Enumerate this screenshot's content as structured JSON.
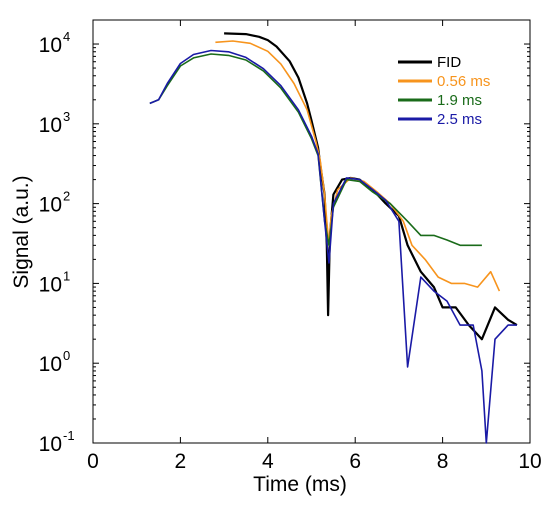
{
  "chart_data": {
    "type": "line",
    "title": "",
    "xlabel": "Time (ms)",
    "ylabel": "Signal (a.u.)",
    "xlim": [
      0,
      10
    ],
    "ylim": [
      0.1,
      20000
    ],
    "yscale": "log",
    "grid": false,
    "legend_position": "top-right",
    "x_ticks": [
      0,
      2,
      4,
      6,
      8,
      10
    ],
    "x_tick_labels": [
      "0",
      "2",
      "4",
      "6",
      "8",
      "10"
    ],
    "y_ticks": [
      0.1,
      1,
      10,
      100,
      1000,
      10000
    ],
    "y_tick_labels": [
      {
        "base": "10",
        "exp": "-1"
      },
      {
        "base": "10",
        "exp": "0"
      },
      {
        "base": "10",
        "exp": "1"
      },
      {
        "base": "10",
        "exp": "2"
      },
      {
        "base": "10",
        "exp": "3"
      },
      {
        "base": "10",
        "exp": "4"
      }
    ],
    "series": [
      {
        "name": "FID",
        "color": "#000000",
        "label_color": "#000000",
        "points": [
          [
            3.0,
            13600
          ],
          [
            3.5,
            13300
          ],
          [
            3.8,
            12300
          ],
          [
            4.0,
            11200
          ],
          [
            4.2,
            9300
          ],
          [
            4.5,
            6100
          ],
          [
            4.7,
            3800
          ],
          [
            4.9,
            1800
          ],
          [
            5.0,
            1100
          ],
          [
            5.1,
            650
          ],
          [
            5.15,
            500
          ],
          [
            5.2,
            310
          ],
          [
            5.3,
            130
          ],
          [
            5.35,
            30
          ],
          [
            5.38,
            4
          ],
          [
            5.42,
            40
          ],
          [
            5.5,
            130
          ],
          [
            5.7,
            200
          ],
          [
            5.9,
            210
          ],
          [
            6.1,
            200
          ],
          [
            6.4,
            150
          ],
          [
            6.7,
            100
          ],
          [
            7.0,
            70
          ],
          [
            7.2,
            30
          ],
          [
            7.5,
            14
          ],
          [
            7.8,
            9
          ],
          [
            8.0,
            5
          ],
          [
            8.3,
            5
          ],
          [
            8.6,
            3
          ],
          [
            8.9,
            2
          ],
          [
            9.2,
            5
          ],
          [
            9.5,
            3.5
          ],
          [
            9.7,
            3
          ]
        ]
      },
      {
        "name": "0.56 ms",
        "color": "#f7941d",
        "label_color": "#f7941d",
        "points": [
          [
            2.8,
            10500
          ],
          [
            3.2,
            10900
          ],
          [
            3.6,
            10200
          ],
          [
            4.0,
            8100
          ],
          [
            4.3,
            5600
          ],
          [
            4.6,
            3200
          ],
          [
            4.9,
            1500
          ],
          [
            5.1,
            600
          ],
          [
            5.2,
            350
          ],
          [
            5.3,
            130
          ],
          [
            5.35,
            60
          ],
          [
            5.4,
            30
          ],
          [
            5.45,
            70
          ],
          [
            5.6,
            150
          ],
          [
            5.9,
            210
          ],
          [
            6.2,
            190
          ],
          [
            6.5,
            140
          ],
          [
            6.8,
            100
          ],
          [
            7.1,
            60
          ],
          [
            7.3,
            30
          ],
          [
            7.6,
            20
          ],
          [
            7.9,
            12
          ],
          [
            8.2,
            10
          ],
          [
            8.5,
            10
          ],
          [
            8.8,
            9
          ],
          [
            9.1,
            14
          ],
          [
            9.3,
            8
          ]
        ]
      },
      {
        "name": "1.9 ms",
        "color": "#1a6b1a",
        "label_color": "#1a6b1a",
        "points": [
          [
            1.3,
            1800
          ],
          [
            1.5,
            2000
          ],
          [
            1.7,
            3000
          ],
          [
            2.0,
            5300
          ],
          [
            2.3,
            6700
          ],
          [
            2.7,
            7500
          ],
          [
            3.1,
            7200
          ],
          [
            3.5,
            6300
          ],
          [
            3.9,
            4600
          ],
          [
            4.3,
            2800
          ],
          [
            4.7,
            1400
          ],
          [
            5.0,
            650
          ],
          [
            5.15,
            400
          ],
          [
            5.3,
            60
          ],
          [
            5.4,
            30
          ],
          [
            5.5,
            90
          ],
          [
            5.8,
            200
          ],
          [
            6.1,
            190
          ],
          [
            6.4,
            140
          ],
          [
            6.8,
            100
          ],
          [
            7.2,
            60
          ],
          [
            7.5,
            40
          ],
          [
            7.8,
            40
          ],
          [
            8.1,
            35
          ],
          [
            8.4,
            30
          ],
          [
            8.7,
            30
          ],
          [
            8.9,
            30
          ]
        ]
      },
      {
        "name": "2.5 ms",
        "color": "#1a1aa6",
        "label_color": "#1a1aa6",
        "points": [
          [
            1.3,
            1800
          ],
          [
            1.5,
            2000
          ],
          [
            1.7,
            3200
          ],
          [
            2.0,
            5700
          ],
          [
            2.3,
            7400
          ],
          [
            2.7,
            8300
          ],
          [
            3.1,
            8000
          ],
          [
            3.5,
            6800
          ],
          [
            3.9,
            4900
          ],
          [
            4.3,
            3000
          ],
          [
            4.7,
            1500
          ],
          [
            5.0,
            700
          ],
          [
            5.15,
            420
          ],
          [
            5.3,
            60
          ],
          [
            5.4,
            18
          ],
          [
            5.5,
            100
          ],
          [
            5.8,
            210
          ],
          [
            6.1,
            200
          ],
          [
            6.4,
            150
          ],
          [
            6.7,
            110
          ],
          [
            7.0,
            60
          ],
          [
            7.2,
            0.9
          ],
          [
            7.5,
            12
          ],
          [
            7.8,
            8
          ],
          [
            8.1,
            6
          ],
          [
            8.4,
            3
          ],
          [
            8.7,
            3
          ],
          [
            8.9,
            0.8
          ],
          [
            9.0,
            0.1
          ],
          [
            9.2,
            2
          ],
          [
            9.5,
            3
          ],
          [
            9.7,
            3
          ]
        ]
      }
    ]
  }
}
